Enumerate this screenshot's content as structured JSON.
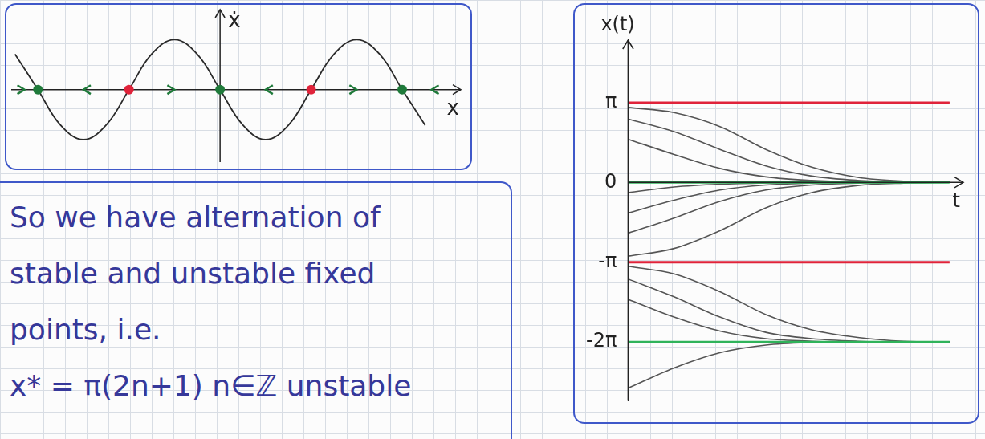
{
  "chart_data": [
    {
      "type": "line",
      "x_label": "x",
      "y_label": "ẋ",
      "x": [
        -7.07,
        -6.28,
        -5.5,
        -4.71,
        -3.93,
        -3.14,
        -2.36,
        -1.57,
        -0.79,
        0,
        0.79,
        1.57,
        2.36,
        3.14,
        3.93,
        4.71,
        5.5,
        6.28,
        7.07
      ],
      "values": [
        0.71,
        0,
        -0.71,
        -1,
        -0.71,
        0,
        0.71,
        1,
        0.71,
        0,
        -0.71,
        -1,
        -0.71,
        0,
        0.71,
        1,
        0.71,
        0,
        -0.71
      ],
      "color": "#2a2a2a",
      "xlim": [
        -7.2,
        8.3
      ],
      "ylim": [
        -1.45,
        1.6
      ],
      "tick_labels": false,
      "grid": false,
      "fixed_points": {
        "x": [
          -6.28,
          -3.14,
          0,
          3.14,
          6.28
        ],
        "colors": [
          "#1f7a3a",
          "#e0233a",
          "#1f7a3a",
          "#e0233a",
          "#1f7a3a"
        ]
      }
    },
    {
      "type": "line",
      "x_label": "t",
      "y_label": "x(t)",
      "x": [
        0,
        2,
        4,
        6,
        8,
        10,
        12,
        14
      ],
      "series": [
        {
          "color": "#e0233a",
          "line_style": "dashed",
          "values": [
            3.14,
            3.14,
            3.14,
            3.14,
            3.14,
            3.14,
            3.14,
            3.14
          ]
        },
        {
          "color": "#2fb35a",
          "line_style": "solid",
          "values": [
            0,
            0,
            0,
            0,
            0,
            0,
            0,
            0
          ]
        },
        {
          "color": "#e0233a",
          "line_style": "dashed",
          "values": [
            -3.14,
            -3.14,
            -3.14,
            -3.14,
            -3.14,
            -3.14,
            -3.14,
            -3.14
          ]
        },
        {
          "color": "#2fb35a",
          "line_style": "dashed",
          "values": [
            -6.28,
            -6.28,
            -6.28,
            -6.28,
            -6.28,
            -6.28,
            -6.28,
            -6.28
          ]
        },
        {
          "color": "#555555",
          "line_style": "solid",
          "values": [
            2.95,
            2.75,
            2.2,
            1.3,
            0.6,
            0.2,
            0.05,
            0.01
          ]
        },
        {
          "color": "#555555",
          "line_style": "solid",
          "values": [
            2.5,
            2.0,
            1.3,
            0.65,
            0.25,
            0.08,
            0.02,
            0
          ]
        },
        {
          "color": "#555555",
          "line_style": "solid",
          "values": [
            1.7,
            1.1,
            0.55,
            0.22,
            0.08,
            0.02,
            0,
            0
          ]
        },
        {
          "color": "#555555",
          "line_style": "solid",
          "values": [
            -0.4,
            -0.18,
            -0.07,
            -0.02,
            0,
            0,
            0,
            0
          ]
        },
        {
          "color": "#555555",
          "line_style": "solid",
          "values": [
            -1.2,
            -0.7,
            -0.3,
            -0.1,
            -0.03,
            0,
            0,
            0
          ]
        },
        {
          "color": "#555555",
          "line_style": "solid",
          "values": [
            -2.0,
            -1.4,
            -0.75,
            -0.3,
            -0.1,
            -0.03,
            0,
            0
          ]
        },
        {
          "color": "#555555",
          "line_style": "solid",
          "values": [
            -2.9,
            -2.6,
            -1.9,
            -1.0,
            -0.4,
            -0.12,
            -0.03,
            0
          ]
        },
        {
          "color": "#555555",
          "line_style": "solid",
          "values": [
            -3.3,
            -3.6,
            -4.3,
            -5.2,
            -5.8,
            -6.1,
            -6.25,
            -6.28
          ]
        },
        {
          "color": "#555555",
          "line_style": "solid",
          "values": [
            -3.8,
            -4.5,
            -5.3,
            -5.9,
            -6.15,
            -6.25,
            -6.28,
            -6.28
          ]
        },
        {
          "color": "#555555",
          "line_style": "solid",
          "values": [
            -4.6,
            -5.3,
            -5.85,
            -6.15,
            -6.25,
            -6.28,
            -6.28,
            -6.28
          ]
        },
        {
          "color": "#555555",
          "line_style": "solid",
          "values": [
            -8.1,
            -7.3,
            -6.7,
            -6.4,
            -6.3,
            -6.28,
            -6.28,
            -6.28
          ]
        }
      ],
      "xlim": [
        0,
        14.6
      ],
      "ylim": [
        -8.6,
        5.6
      ],
      "yticks": [
        {
          "value": 3.14,
          "label": "π"
        },
        0,
        {
          "value": -3.14,
          "label": "-π"
        },
        {
          "value": -6.28,
          "label": "-2π"
        }
      ],
      "tick_labels": "y",
      "grid": false
    }
  ],
  "text": {
    "lines": [
      "So we have alternation of",
      "stable and unstable fixed",
      "points, i.e.",
      "x* = π(2n+1)  n∈ℤ unstable"
    ]
  }
}
